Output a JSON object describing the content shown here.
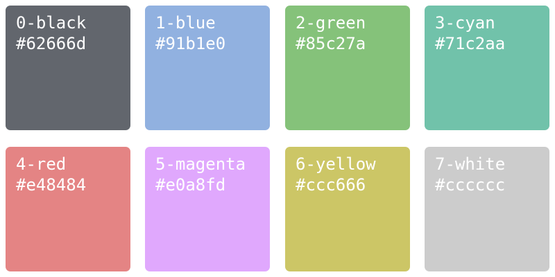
{
  "swatches": [
    {
      "name": "0-black",
      "hex": "#62666d",
      "color": "#62666d"
    },
    {
      "name": "1-blue",
      "hex": "#91b1e0",
      "color": "#91b1e0"
    },
    {
      "name": "2-green",
      "hex": "#85c27a",
      "color": "#85c27a"
    },
    {
      "name": "3-cyan",
      "hex": "#71c2aa",
      "color": "#71c2aa"
    },
    {
      "name": "4-red",
      "hex": "#e48484",
      "color": "#e48484"
    },
    {
      "name": "5-magenta",
      "hex": "#e0a8fd",
      "color": "#e0a8fd"
    },
    {
      "name": "6-yellow",
      "hex": "#ccc666",
      "color": "#ccc666"
    },
    {
      "name": "7-white",
      "hex": "#cccccc",
      "color": "#cccccc"
    }
  ]
}
